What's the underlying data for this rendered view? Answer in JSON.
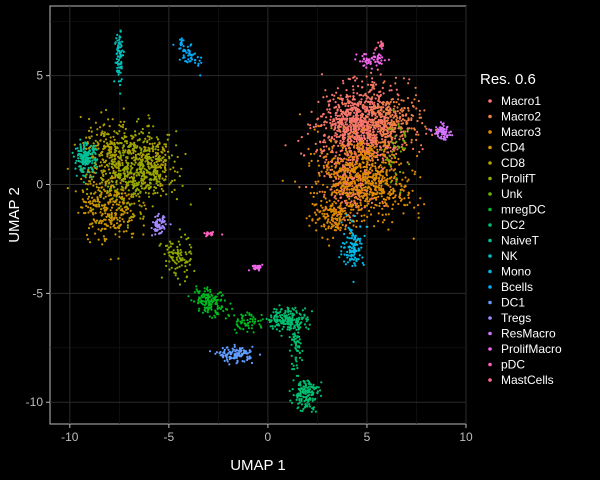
{
  "chart_data": {
    "type": "scatter",
    "title": "",
    "xlabel": "UMAP 1",
    "ylabel": "UMAP 2",
    "xlim": [
      -11,
      10
    ],
    "ylim": [
      -11,
      8.2
    ],
    "xticks": [
      -10,
      -5,
      0,
      5,
      10
    ],
    "yticks": [
      -10,
      -5,
      0,
      5
    ],
    "grid": true,
    "legend": {
      "title": "Res. 0.6",
      "placement": "right"
    },
    "series": [
      {
        "name": "Macro1",
        "color": "#F8766D",
        "clusters": [
          [
            4.6,
            2.6,
            1.9,
            1.7,
            0.5,
            1000
          ],
          [
            4.2,
            -0.2,
            1.1,
            1.0,
            0,
            180
          ]
        ]
      },
      {
        "name": "Macro2",
        "color": "#EE8043",
        "clusters": [
          [
            6.2,
            2.8,
            1.4,
            1.3,
            0,
            260
          ]
        ]
      },
      {
        "name": "Macro3",
        "color": "#DF8B00",
        "clusters": [
          [
            4.8,
            0.3,
            2.1,
            1.6,
            -0.3,
            700
          ],
          [
            3.2,
            -1.5,
            1.0,
            0.8,
            0,
            140
          ]
        ]
      },
      {
        "name": "CD4",
        "color": "#CB9500",
        "clusters": [
          [
            -8.0,
            -0.9,
            1.3,
            1.5,
            0,
            320
          ]
        ]
      },
      {
        "name": "CD8",
        "color": "#B29F00",
        "clusters": [
          [
            -7.9,
            1.4,
            1.4,
            1.4,
            0,
            260
          ],
          [
            -5.8,
            1.0,
            1.0,
            1.2,
            0,
            180
          ]
        ]
      },
      {
        "name": "ProlifT",
        "color": "#93A900",
        "clusters": [
          [
            -6.7,
            0.6,
            1.6,
            1.6,
            0,
            380
          ],
          [
            -4.6,
            -3.4,
            0.7,
            0.9,
            0,
            90
          ]
        ]
      },
      {
        "name": "Unk",
        "color": "#6BB100",
        "clusters": [
          [
            6.5,
            1.5,
            0.6,
            1.4,
            0,
            40
          ]
        ]
      },
      {
        "name": "mregDC",
        "color": "#00B81F",
        "clusters": [
          [
            -2.9,
            -5.4,
            0.8,
            0.5,
            -0.4,
            140
          ],
          [
            -1.0,
            -6.3,
            0.8,
            0.4,
            0,
            60
          ]
        ]
      },
      {
        "name": "DC2",
        "color": "#00BE70",
        "clusters": [
          [
            1.0,
            -6.2,
            0.9,
            0.5,
            0,
            180
          ],
          [
            1.9,
            -9.6,
            0.6,
            0.7,
            0,
            150
          ],
          [
            1.4,
            -7.5,
            0.3,
            1.0,
            0,
            60
          ]
        ]
      },
      {
        "name": "NaiveT",
        "color": "#00C199",
        "clusters": [
          [
            -9.2,
            1.2,
            0.5,
            0.6,
            0,
            150
          ]
        ]
      },
      {
        "name": "NK",
        "color": "#00C0BB",
        "clusters": [
          [
            -7.5,
            5.9,
            0.2,
            1.2,
            0,
            80
          ]
        ]
      },
      {
        "name": "Mono",
        "color": "#00B8E5",
        "clusters": [
          [
            4.3,
            -2.8,
            0.5,
            0.9,
            0,
            120
          ]
        ]
      },
      {
        "name": "Bcells",
        "color": "#00ACFC",
        "clusters": [
          [
            -4.0,
            6.0,
            0.35,
            0.9,
            0.6,
            60
          ]
        ]
      },
      {
        "name": "DC1",
        "color": "#619CFF",
        "clusters": [
          [
            -1.6,
            -7.8,
            0.8,
            0.3,
            0,
            120
          ]
        ]
      },
      {
        "name": "Tregs",
        "color": "#A58AFF",
        "clusters": [
          [
            -5.5,
            -1.9,
            0.3,
            0.4,
            0,
            70
          ]
        ]
      },
      {
        "name": "ResMacro",
        "color": "#D575FE",
        "clusters": [
          [
            8.8,
            2.4,
            0.4,
            0.3,
            0,
            70
          ]
        ]
      },
      {
        "name": "ProlifMacro",
        "color": "#F066EA",
        "clusters": [
          [
            5.3,
            5.7,
            0.7,
            0.3,
            0,
            60
          ],
          [
            -0.6,
            -3.8,
            0.3,
            0.15,
            0,
            25
          ]
        ]
      },
      {
        "name": "pDC",
        "color": "#FC62BD",
        "clusters": [
          [
            -2.9,
            -2.3,
            0.3,
            0.12,
            0,
            20
          ]
        ]
      },
      {
        "name": "MastCells",
        "color": "#FF6C91",
        "clusters": [
          [
            5.6,
            6.4,
            0.2,
            0.2,
            0,
            15
          ]
        ]
      }
    ]
  }
}
